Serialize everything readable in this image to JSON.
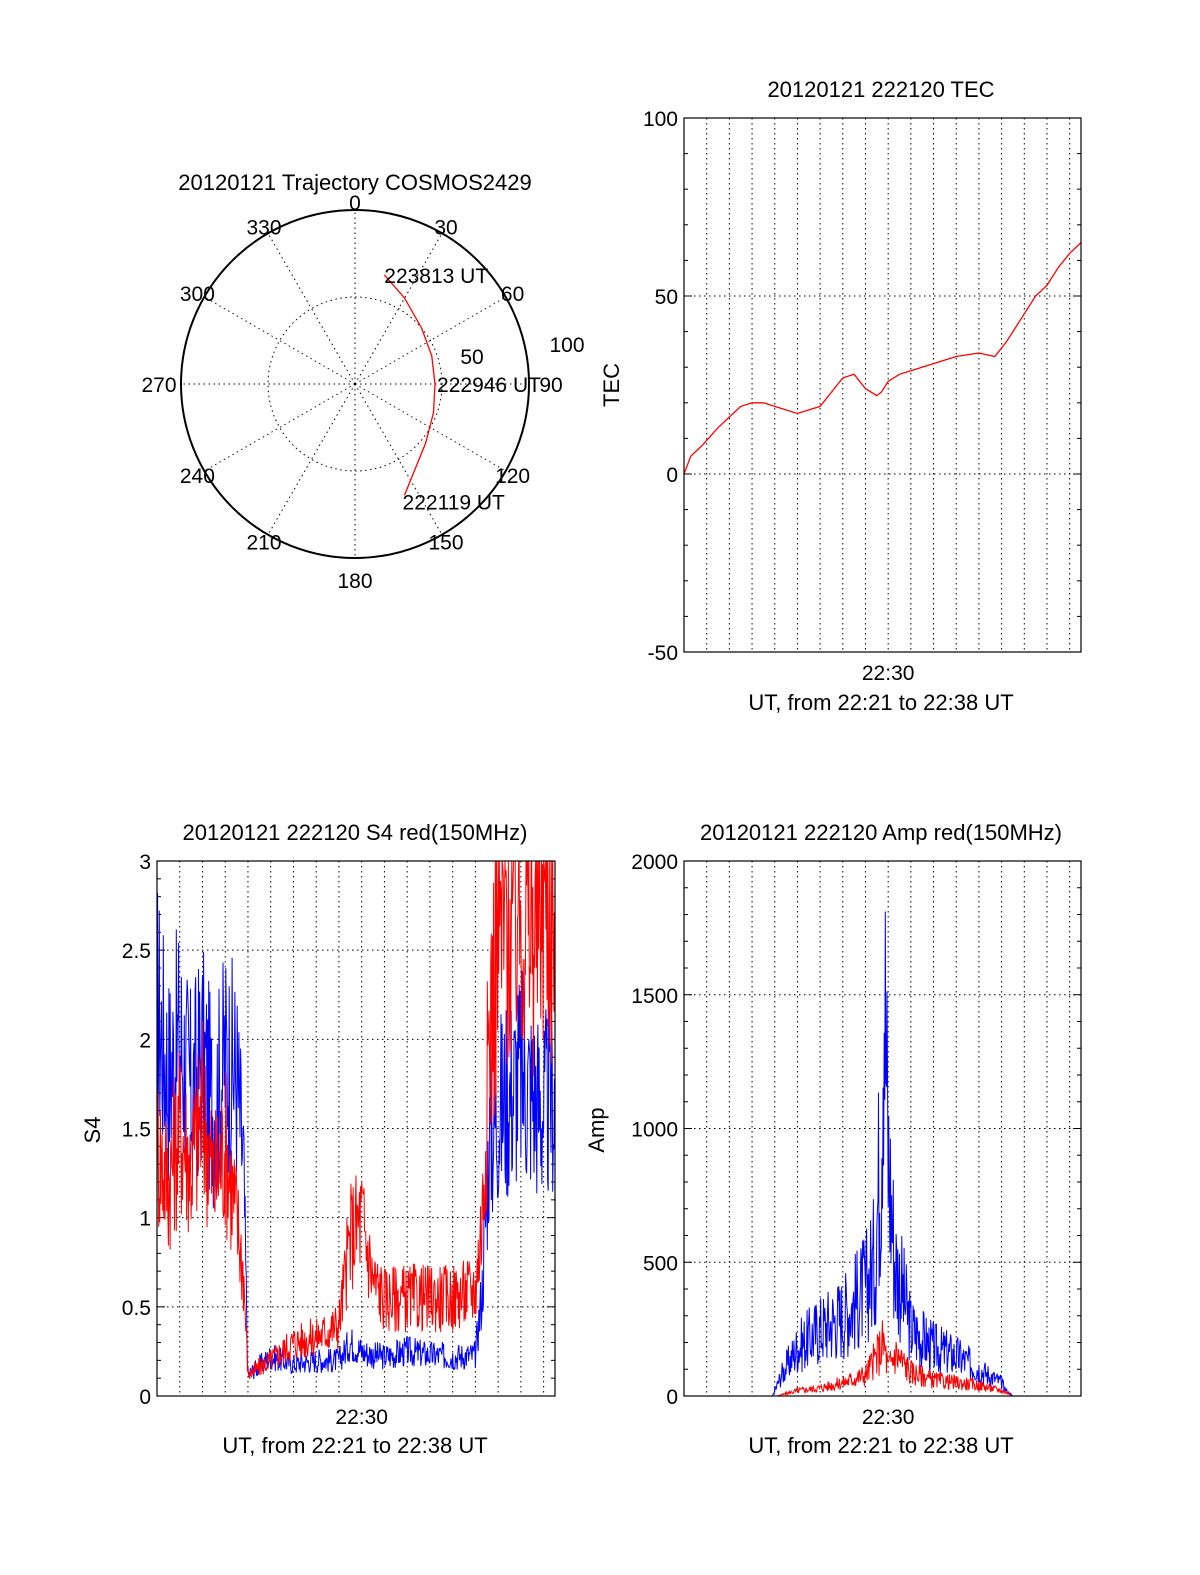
{
  "colors": {
    "red": "#ff0000",
    "blue": "#0000ff",
    "axes": "#000000"
  },
  "chart_data": [
    {
      "type": "polar",
      "title": "20120121 Trajectory COSMOS2429",
      "azimuth_labels": [
        "0",
        "30",
        "60",
        "90",
        "120",
        "150",
        "180",
        "210",
        "240",
        "270",
        "300",
        "330"
      ],
      "radial_labels": [
        "50",
        "100"
      ],
      "radial_ticks": [
        50,
        100
      ],
      "radius_max": 100,
      "series": [
        {
          "color": "red",
          "points": [
            {
              "az": 15,
              "r": 65
            },
            {
              "az": 30,
              "r": 57
            },
            {
              "az": 50,
              "r": 50
            },
            {
              "az": 70,
              "r": 47
            },
            {
              "az": 90,
              "r": 46
            },
            {
              "az": 110,
              "r": 48
            },
            {
              "az": 130,
              "r": 53
            },
            {
              "az": 145,
              "r": 60
            },
            {
              "az": 156,
              "r": 70
            }
          ]
        }
      ],
      "annotations": [
        {
          "text": "223813 UT",
          "az": 15,
          "r": 65
        },
        {
          "text": "222946 UT",
          "az": 90,
          "r": 46
        },
        {
          "text": "222119 UT",
          "az": 156,
          "r": 70
        }
      ]
    },
    {
      "type": "line",
      "title": "20120121 222120 TEC",
      "ylabel": "TEC",
      "xlabel": "UT, from 22:21 to 22:38 UT",
      "xticks": [
        "22:30"
      ],
      "yticks": [
        "100",
        "50",
        "0",
        "-50"
      ],
      "ylim": [
        -50,
        100
      ],
      "xlim": [
        0,
        17.5
      ],
      "series": [
        {
          "color": "red",
          "x": [
            0,
            0.3,
            0.8,
            1.5,
            2.0,
            2.5,
            3.0,
            3.5,
            4.0,
            5.0,
            6.0,
            6.5,
            7.0,
            7.5,
            8.0,
            8.5,
            8.7,
            9.0,
            9.5,
            10,
            11,
            12,
            13,
            13.7,
            14.2,
            15,
            15.5,
            16,
            16.5,
            17,
            17.5
          ],
          "y": [
            0,
            5,
            8,
            13,
            16,
            19,
            20,
            20,
            19,
            17,
            19,
            23,
            27,
            28,
            24,
            22,
            23,
            26,
            28,
            29,
            31,
            33,
            34,
            33,
            37,
            45,
            50,
            53,
            58,
            62,
            65
          ]
        }
      ]
    },
    {
      "type": "line",
      "title": "20120121 222120 S4 red(150MHz)",
      "ylabel": "S4",
      "xlabel": "UT, from 22:21 to 22:38 UT",
      "xticks": [
        "22:30"
      ],
      "yticks": [
        "3",
        "2.5",
        "2",
        "1.5",
        "1",
        "0.5",
        "0"
      ],
      "ylim": [
        0,
        3
      ],
      "xlim": [
        0,
        17.5
      ],
      "series": [
        {
          "color": "blue",
          "x": [
            0,
            0.5,
            1,
            1.5,
            2,
            2.5,
            3,
            3.5,
            3.8,
            4.0,
            5,
            6,
            7,
            8,
            8.5,
            9,
            9.5,
            10,
            11,
            12,
            13,
            14,
            14.3,
            14.6,
            15,
            15.5,
            16,
            16.5,
            17,
            17.5
          ],
          "y": [
            2.2,
            1.8,
            2.0,
            1.7,
            1.9,
            1.6,
            1.9,
            1.8,
            1.3,
            0.12,
            0.22,
            0.18,
            0.2,
            0.2,
            0.3,
            0.25,
            0.23,
            0.22,
            0.25,
            0.23,
            0.22,
            0.23,
            0.6,
            1.4,
            1.6,
            1.7,
            1.8,
            1.7,
            1.6,
            1.7
          ]
        },
        {
          "color": "red",
          "x": [
            0,
            0.5,
            1,
            1.5,
            2,
            2.5,
            3,
            3.5,
            3.8,
            4.0,
            5,
            6,
            7,
            8,
            8.5,
            9,
            9.5,
            10,
            11,
            12,
            13,
            14,
            14.3,
            14.6,
            15,
            15.5,
            16,
            16.5,
            17,
            17.5
          ],
          "y": [
            1.4,
            1.2,
            1.5,
            1.3,
            1.6,
            1.2,
            1.4,
            1.0,
            0.7,
            0.12,
            0.2,
            0.3,
            0.33,
            0.4,
            0.9,
            1.0,
            0.65,
            0.55,
            0.55,
            0.55,
            0.55,
            0.6,
            1.0,
            2.0,
            2.6,
            2.7,
            2.8,
            2.6,
            2.9,
            2.7
          ]
        }
      ]
    },
    {
      "type": "line",
      "title": "20120121 222120 Amp red(150MHz)",
      "ylabel": "Amp",
      "xlabel": "UT, from 22:21 to 22:38 UT",
      "xticks": [
        "22:30"
      ],
      "yticks": [
        "2000",
        "1500",
        "1000",
        "500",
        "0"
      ],
      "ylim": [
        0,
        2000
      ],
      "xlim": [
        0,
        17.5
      ],
      "series": [
        {
          "color": "blue",
          "x": [
            0,
            3.9,
            4.3,
            5,
            6,
            7,
            8,
            8.4,
            8.7,
            8.8,
            9.0,
            9.3,
            9.6,
            10,
            11,
            12,
            13,
            14,
            14.2,
            14.5,
            17.5
          ],
          "y": [
            0,
            0,
            80,
            180,
            250,
            300,
            400,
            500,
            1000,
            1700,
            900,
            500,
            400,
            250,
            180,
            150,
            100,
            50,
            20,
            0,
            0
          ]
        },
        {
          "color": "red",
          "x": [
            0,
            4.1,
            5,
            6,
            7,
            8,
            8.5,
            8.8,
            9.0,
            9.3,
            10,
            11,
            12,
            13,
            14,
            14.3,
            14.5,
            17.5
          ],
          "y": [
            0,
            0,
            20,
            30,
            50,
            80,
            150,
            200,
            100,
            160,
            90,
            60,
            50,
            40,
            20,
            10,
            0,
            0
          ]
        }
      ]
    }
  ]
}
